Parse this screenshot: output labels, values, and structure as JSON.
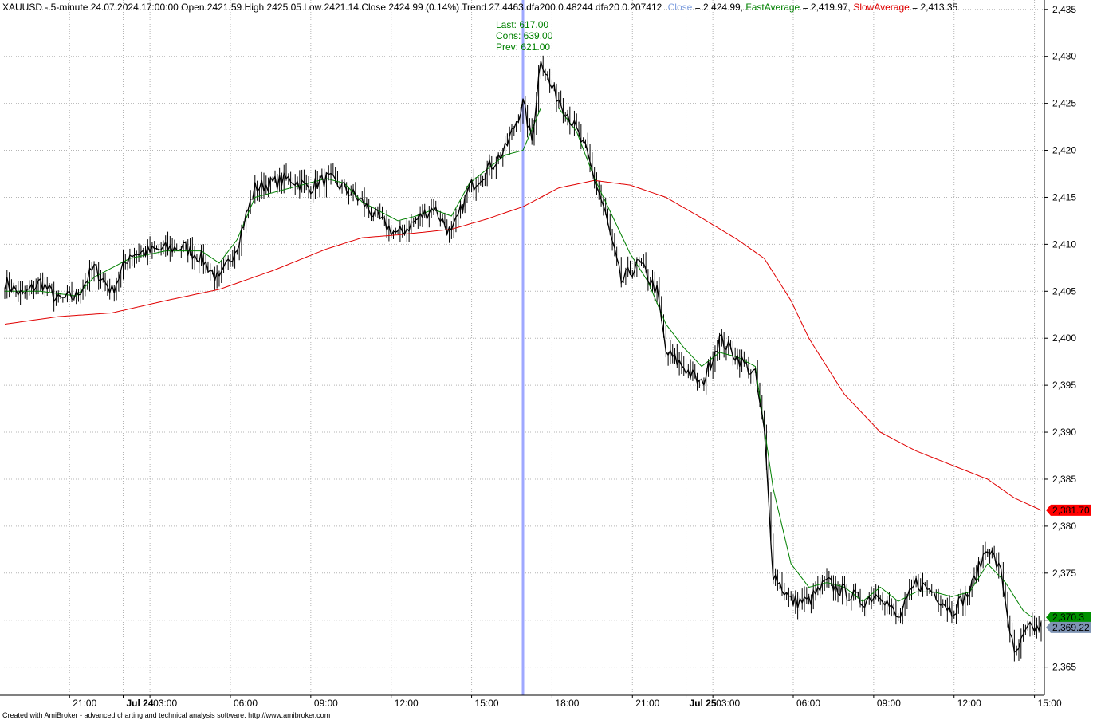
{
  "header": {
    "prefix": "XAUUSD - 5-minute 24.07.2024 17:00:00 Open 2421.59 High 2425.05 Low 2421.14 Close 2424.99 (0.14%) Trend 27.4463 dfa200 0.48244 dfa20 0.207412",
    "close_label": "Close",
    "close_value": " = 2,424.99, ",
    "fast_label": "FastAverage",
    "fast_value": " = 2,419.97, ",
    "slow_label": "SlowAverage",
    "slow_value": " = 2,413.35"
  },
  "annotation": {
    "last": "Last: 617.00",
    "cons": "Cons: 639.00",
    "prev": "Prev: 621.00"
  },
  "footer": "Created with AmiBroker - advanced charting and technical analysis software. http://www.amibroker.com",
  "colors": {
    "price": "#000000",
    "fast": "#008000",
    "slow": "#e00000",
    "close_label": "#7f9fdf",
    "cursor": "#9fa8ff",
    "last_bg": "#7f94b4",
    "fast_bg": "#009000",
    "slow_bg": "#ff0000"
  },
  "chart_data": {
    "type": "line",
    "title": "XAUUSD - 5-minute",
    "ylim": [
      2362,
      2436
    ],
    "y_ticks": [
      "2,435",
      "2,430",
      "2,425",
      "2,420",
      "2,415",
      "2,410",
      "2,405",
      "2,400",
      "2,395",
      "2,390",
      "2,385",
      "2,380",
      "2,375",
      "2,370",
      "2,365"
    ],
    "y_tick_values": [
      2435,
      2430,
      2425,
      2420,
      2415,
      2410,
      2405,
      2400,
      2395,
      2390,
      2385,
      2380,
      2375,
      2370,
      2365
    ],
    "x_ticks": [
      {
        "label": "21:00",
        "bar": 29,
        "bold": false
      },
      {
        "label": "Jul 24",
        "bar": 53,
        "bold": true
      },
      {
        "label": "03:00",
        "bar": 65,
        "bold": false
      },
      {
        "label": "06:00",
        "bar": 101,
        "bold": false
      },
      {
        "label": "09:00",
        "bar": 137,
        "bold": false
      },
      {
        "label": "12:00",
        "bar": 173,
        "bold": false
      },
      {
        "label": "15:00",
        "bar": 209,
        "bold": false
      },
      {
        "label": "18:00",
        "bar": 245,
        "bold": false
      },
      {
        "label": "21:00",
        "bar": 281,
        "bold": false
      },
      {
        "label": "Jul 25",
        "bar": 305,
        "bold": true
      },
      {
        "label": "03:00",
        "bar": 317,
        "bold": false
      },
      {
        "label": "06:00",
        "bar": 353,
        "bold": false
      },
      {
        "label": "09:00",
        "bar": 389,
        "bold": false
      },
      {
        "label": "12:00",
        "bar": 425,
        "bold": false
      },
      {
        "label": "15:00",
        "bar": 461,
        "bold": false
      }
    ],
    "n_bars": 465,
    "cursor_bar": 232,
    "close_points": [
      [
        0,
        2406
      ],
      [
        8,
        2404.5
      ],
      [
        16,
        2406
      ],
      [
        24,
        2404
      ],
      [
        32,
        2404.5
      ],
      [
        40,
        2407.5
      ],
      [
        48,
        2405
      ],
      [
        56,
        2409
      ],
      [
        64,
        2409.2
      ],
      [
        72,
        2409.5
      ],
      [
        80,
        2409.7
      ],
      [
        88,
        2408.6
      ],
      [
        96,
        2406
      ],
      [
        104,
        2410
      ],
      [
        112,
        2416
      ],
      [
        120,
        2416.5
      ],
      [
        128,
        2417
      ],
      [
        136,
        2416
      ],
      [
        144,
        2417
      ],
      [
        152,
        2416
      ],
      [
        160,
        2414.5
      ],
      [
        168,
        2412.5
      ],
      [
        176,
        2411
      ],
      [
        184,
        2412.5
      ],
      [
        192,
        2414
      ],
      [
        200,
        2411
      ],
      [
        208,
        2416
      ],
      [
        216,
        2418
      ],
      [
        224,
        2420
      ],
      [
        232,
        2425
      ],
      [
        236,
        2421
      ],
      [
        240,
        2430
      ],
      [
        244,
        2427
      ],
      [
        252,
        2424
      ],
      [
        260,
        2420
      ],
      [
        268,
        2414
      ],
      [
        276,
        2406
      ],
      [
        284,
        2408
      ],
      [
        292,
        2405
      ],
      [
        296,
        2398.5
      ],
      [
        304,
        2397
      ],
      [
        312,
        2395
      ],
      [
        320,
        2400
      ],
      [
        328,
        2398
      ],
      [
        336,
        2396
      ],
      [
        340,
        2390
      ],
      [
        344,
        2375
      ],
      [
        352,
        2372
      ],
      [
        360,
        2372
      ],
      [
        368,
        2374
      ],
      [
        376,
        2373
      ],
      [
        384,
        2372
      ],
      [
        392,
        2373
      ],
      [
        400,
        2370
      ],
      [
        408,
        2374
      ],
      [
        416,
        2373
      ],
      [
        424,
        2371
      ],
      [
        432,
        2373
      ],
      [
        440,
        2378
      ],
      [
        446,
        2375
      ],
      [
        452,
        2366
      ],
      [
        458,
        2369
      ],
      [
        464,
        2369.22
      ]
    ],
    "series": [
      {
        "name": "FastAverage",
        "points": [
          [
            0,
            2405
          ],
          [
            16,
            2405
          ],
          [
            32,
            2404.5
          ],
          [
            40,
            2406.5
          ],
          [
            56,
            2408.5
          ],
          [
            72,
            2409.3
          ],
          [
            88,
            2409.3
          ],
          [
            96,
            2408
          ],
          [
            104,
            2410.5
          ],
          [
            112,
            2415
          ],
          [
            128,
            2416
          ],
          [
            144,
            2417
          ],
          [
            152,
            2416.5
          ],
          [
            160,
            2414.5
          ],
          [
            176,
            2412.5
          ],
          [
            184,
            2413
          ],
          [
            192,
            2413.7
          ],
          [
            200,
            2413
          ],
          [
            208,
            2416.5
          ],
          [
            216,
            2418
          ],
          [
            224,
            2419.5
          ],
          [
            232,
            2420
          ],
          [
            240,
            2424.5
          ],
          [
            248,
            2424.5
          ],
          [
            256,
            2422
          ],
          [
            264,
            2417
          ],
          [
            272,
            2413
          ],
          [
            280,
            2409
          ],
          [
            288,
            2406
          ],
          [
            296,
            2401.5
          ],
          [
            304,
            2399
          ],
          [
            312,
            2397
          ],
          [
            320,
            2398.5
          ],
          [
            328,
            2398
          ],
          [
            336,
            2397
          ],
          [
            344,
            2384
          ],
          [
            352,
            2376
          ],
          [
            360,
            2373.5
          ],
          [
            368,
            2374
          ],
          [
            376,
            2373.5
          ],
          [
            384,
            2372
          ],
          [
            392,
            2373.5
          ],
          [
            400,
            2372
          ],
          [
            408,
            2373
          ],
          [
            416,
            2373
          ],
          [
            424,
            2372.5
          ],
          [
            432,
            2373
          ],
          [
            440,
            2376
          ],
          [
            448,
            2374
          ],
          [
            456,
            2371
          ],
          [
            460,
            2370.3
          ]
        ]
      },
      {
        "name": "SlowAverage",
        "points": [
          [
            0,
            2401.5
          ],
          [
            24,
            2402.3
          ],
          [
            48,
            2402.7
          ],
          [
            72,
            2404
          ],
          [
            96,
            2405.2
          ],
          [
            120,
            2407.2
          ],
          [
            144,
            2409.5
          ],
          [
            160,
            2410.7
          ],
          [
            176,
            2411
          ],
          [
            200,
            2411.6
          ],
          [
            216,
            2412.7
          ],
          [
            232,
            2414
          ],
          [
            248,
            2416
          ],
          [
            264,
            2416.8
          ],
          [
            280,
            2416.3
          ],
          [
            296,
            2415
          ],
          [
            312,
            2412.8
          ],
          [
            328,
            2410.5
          ],
          [
            340,
            2408.5
          ],
          [
            352,
            2404
          ],
          [
            360,
            2400
          ],
          [
            376,
            2394
          ],
          [
            392,
            2390
          ],
          [
            408,
            2388
          ],
          [
            424,
            2386.5
          ],
          [
            440,
            2385
          ],
          [
            452,
            2383
          ],
          [
            464,
            2381.7
          ]
        ]
      }
    ],
    "last_value_labels": [
      {
        "text": "2,381.70",
        "value": 2381.7,
        "color_key": "slow_bg"
      },
      {
        "text": "2,370.3",
        "value": 2370.3,
        "color_key": "fast_bg"
      },
      {
        "text": "2,369.22",
        "value": 2369.22,
        "color_key": "last_bg"
      }
    ]
  }
}
